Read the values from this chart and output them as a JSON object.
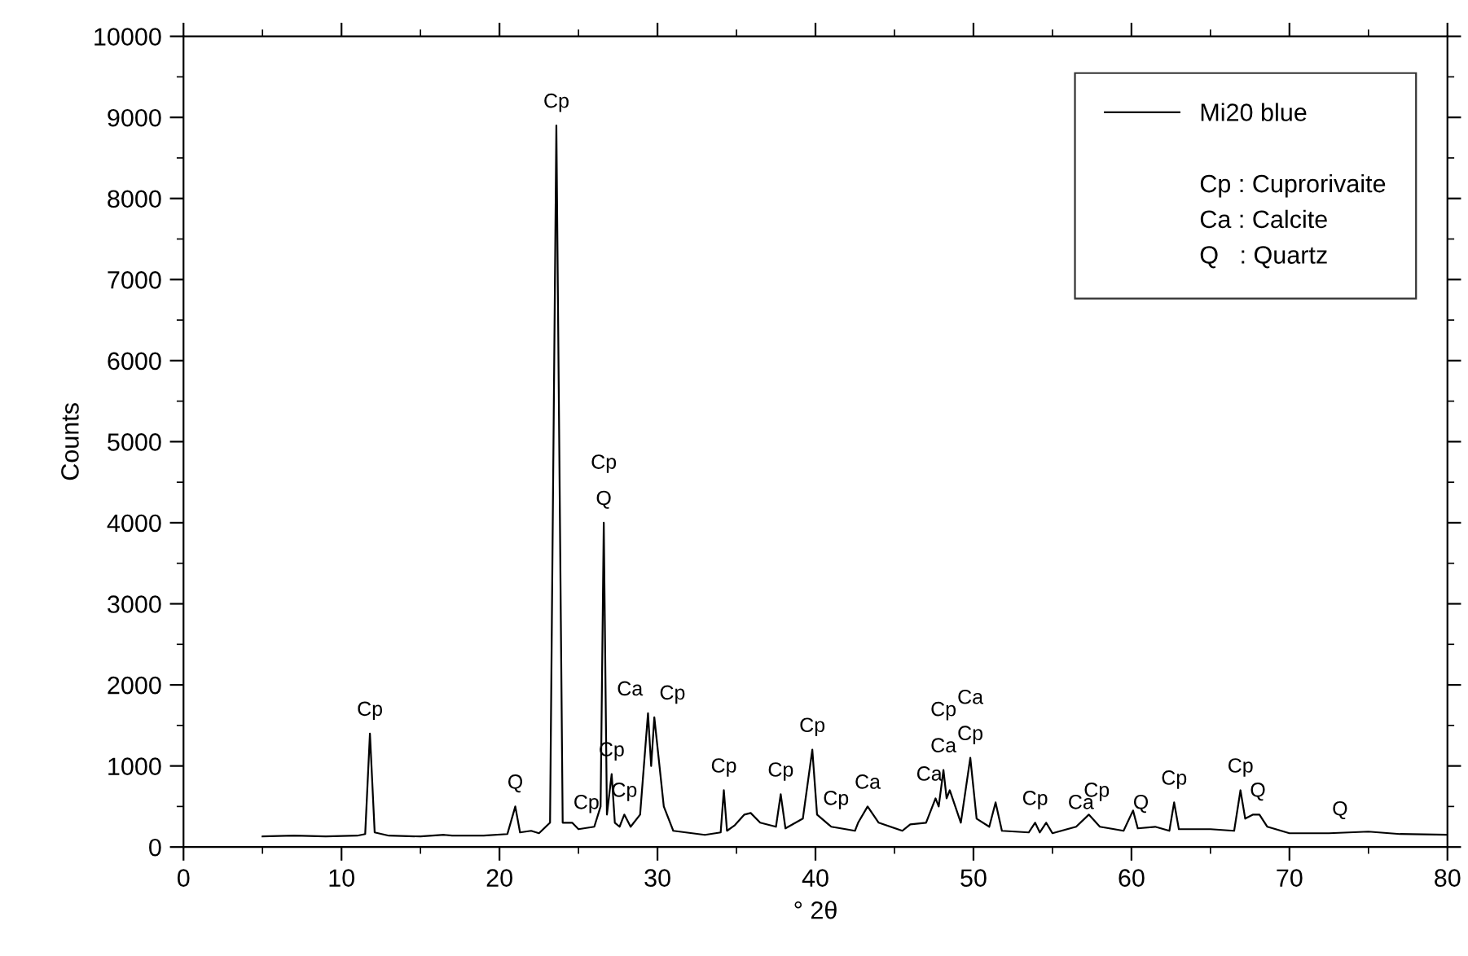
{
  "chart_data": {
    "type": "line",
    "xlabel": "° 2θ",
    "ylabel": "Counts",
    "xlim": [
      0,
      80
    ],
    "xticks": [
      0,
      10,
      20,
      30,
      40,
      50,
      60,
      70,
      80
    ],
    "ylim": [
      0,
      10000
    ],
    "yticks": [
      0,
      1000,
      2000,
      3000,
      4000,
      5000,
      6000,
      7000,
      8000,
      9000,
      10000
    ],
    "grid": false,
    "legend": "top right",
    "series": [
      {
        "name": "Mi20 blue",
        "color": "#000000",
        "x": [
          5,
          7,
          9,
          11,
          11.5,
          11.8,
          12.1,
          13,
          15,
          16.5,
          17,
          19,
          20.5,
          21,
          21.3,
          22,
          22.5,
          23.2,
          23.6,
          24.0,
          24.6,
          25.0,
          26.0,
          26.4,
          26.6,
          26.8,
          27.1,
          27.3,
          27.6,
          27.9,
          28.3,
          28.9,
          29.4,
          29.6,
          29.8,
          30.4,
          31,
          33,
          34.0,
          34.2,
          34.4,
          34.9,
          35.5,
          35.9,
          36.5,
          37.5,
          37.8,
          38.1,
          39.2,
          39.8,
          40.1,
          41,
          42.5,
          42.7,
          43.3,
          44,
          45.5,
          46.0,
          47.0,
          47.6,
          47.8,
          48.1,
          48.3,
          48.5,
          49.2,
          49.8,
          50.2,
          51.0,
          51.4,
          51.8,
          53.5,
          53.9,
          54.2,
          54.6,
          55.0,
          56.5,
          57.3,
          58.0,
          59.5,
          60.1,
          60.4,
          61.5,
          62.4,
          62.7,
          63.0,
          65,
          66.5,
          66.9,
          67.2,
          67.7,
          68.1,
          68.6,
          70,
          72.5,
          75,
          77,
          80
        ],
        "values": [
          130,
          140,
          130,
          140,
          160,
          1400,
          180,
          140,
          130,
          150,
          140,
          140,
          160,
          500,
          180,
          200,
          170,
          300,
          8900,
          300,
          300,
          220,
          250,
          500,
          4000,
          400,
          900,
          300,
          250,
          400,
          250,
          400,
          1650,
          1000,
          1600,
          500,
          200,
          150,
          180,
          700,
          200,
          270,
          400,
          420,
          300,
          250,
          650,
          230,
          350,
          1200,
          400,
          250,
          200,
          300,
          500,
          300,
          200,
          280,
          300,
          600,
          500,
          950,
          600,
          700,
          300,
          1100,
          350,
          250,
          550,
          200,
          180,
          300,
          180,
          300,
          170,
          250,
          400,
          250,
          200,
          450,
          230,
          250,
          200,
          550,
          220,
          220,
          200,
          700,
          350,
          400,
          400,
          250,
          170,
          170,
          190,
          160,
          150
        ]
      }
    ],
    "annotations": [
      {
        "text": "Cp",
        "x": 11.8,
        "y": 1400
      },
      {
        "text": "Q",
        "x": 21,
        "y": 500
      },
      {
        "text": "Cp",
        "x": 23.6,
        "y": 8900
      },
      {
        "text": "Cp",
        "x": 25.5,
        "y": 250
      },
      {
        "text": "Cp",
        "x": 26.6,
        "y": 4000
      },
      {
        "text": "Q",
        "x": 26.6,
        "y": 4000
      },
      {
        "text": "Cp",
        "x": 27.1,
        "y": 900
      },
      {
        "text": "Cp",
        "x": 27.9,
        "y": 400
      },
      {
        "text": "Ca",
        "x": 29.4,
        "y": 1650
      },
      {
        "text": "Cp",
        "x": 29.8,
        "y": 1600
      },
      {
        "text": "Cp",
        "x": 34.2,
        "y": 700
      },
      {
        "text": "Cp",
        "x": 37.8,
        "y": 650
      },
      {
        "text": "Cp",
        "x": 39.8,
        "y": 1200
      },
      {
        "text": "Cp",
        "x": 41.3,
        "y": 300
      },
      {
        "text": "Ca",
        "x": 43.3,
        "y": 500
      },
      {
        "text": "Ca",
        "x": 47.2,
        "y": 600
      },
      {
        "text": "Cp",
        "x": 48.1,
        "y": 950
      },
      {
        "text": "Ca",
        "x": 48.1,
        "y": 950
      },
      {
        "text": "Ca",
        "x": 49.8,
        "y": 1100
      },
      {
        "text": "Cp",
        "x": 49.8,
        "y": 1100
      },
      {
        "text": "Cp",
        "x": 53.9,
        "y": 300
      },
      {
        "text": "Ca",
        "x": 56.8,
        "y": 250
      },
      {
        "text": "Cp",
        "x": 57.8,
        "y": 400
      },
      {
        "text": "Q",
        "x": 60.6,
        "y": 250
      },
      {
        "text": "Cp",
        "x": 62.7,
        "y": 550
      },
      {
        "text": "Cp",
        "x": 66.9,
        "y": 700
      },
      {
        "text": "Q",
        "x": 68.0,
        "y": 400
      },
      {
        "text": "Q",
        "x": 73.2,
        "y": 170
      },
      "Cp : Cuprorivaite",
      "Ca : Calcite",
      "Q   : Quartz"
    ]
  }
}
